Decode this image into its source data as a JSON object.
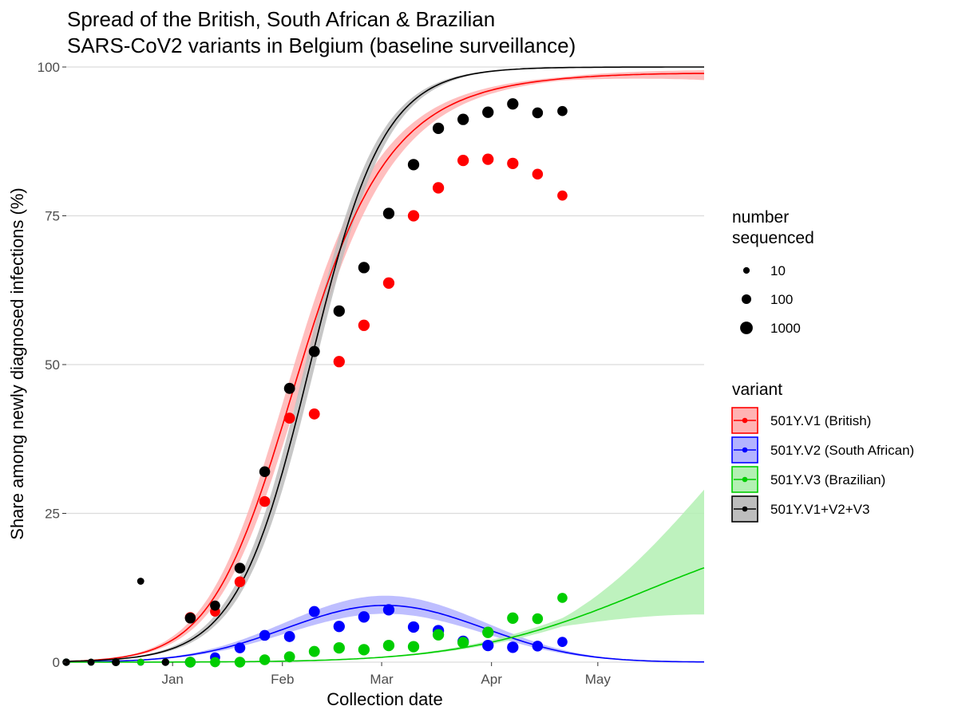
{
  "chart_data": {
    "type": "scatter",
    "title": [
      "Spread of the British, South African & Brazilian",
      "SARS-CoV2 variants in Belgium (baseline surveillance)"
    ],
    "xlabel": "Collection date",
    "ylabel": "Share among newly diagnosed infections (%)",
    "xlim_days": [
      0,
      180
    ],
    "ylim": [
      0,
      100
    ],
    "x_ticks": [
      {
        "label": "Jan",
        "day": 30
      },
      {
        "label": "Feb",
        "day": 61
      },
      {
        "label": "Mar",
        "day": 89
      },
      {
        "label": "Apr",
        "day": 120
      },
      {
        "label": "May",
        "day": 150
      }
    ],
    "y_ticks": [
      0,
      25,
      50,
      75,
      100
    ],
    "grid": true,
    "size_legend": {
      "title": [
        "number",
        "sequenced"
      ],
      "entries": [
        {
          "label": "10",
          "n": 10
        },
        {
          "label": "100",
          "n": 100
        },
        {
          "label": "1000",
          "n": 1000
        }
      ]
    },
    "variant_legend_title": "variant",
    "series": [
      {
        "name": "501Y.V1 (British)",
        "color": "#ff0000",
        "fill": "#ffb3b3",
        "fit": {
          "model": "quadratic_logistic",
          "a": -6.6,
          "b": 0.1217,
          "c": -0.000333,
          "ci_lo": 0.6,
          "ci_hi": 0.6,
          "ci_growth": 9.5
        },
        "points": [
          {
            "x": 0,
            "y": 0,
            "n": 20
          },
          {
            "x": 7,
            "y": 0,
            "n": 15
          },
          {
            "x": 14,
            "y": 0,
            "n": 30
          },
          {
            "x": 21,
            "y": 0,
            "n": 15
          },
          {
            "x": 28,
            "y": 0,
            "n": 20
          },
          {
            "x": 35,
            "y": 7.5,
            "n": 250
          },
          {
            "x": 42,
            "y": 8.5,
            "n": 150
          },
          {
            "x": 49,
            "y": 13.5,
            "n": 250
          },
          {
            "x": 56,
            "y": 27,
            "n": 250
          },
          {
            "x": 63,
            "y": 41,
            "n": 300
          },
          {
            "x": 70,
            "y": 41.7,
            "n": 300
          },
          {
            "x": 77,
            "y": 50.5,
            "n": 400
          },
          {
            "x": 84,
            "y": 56.6,
            "n": 400
          },
          {
            "x": 91,
            "y": 63.7,
            "n": 400
          },
          {
            "x": 98,
            "y": 75,
            "n": 400
          },
          {
            "x": 105,
            "y": 79.7,
            "n": 400
          },
          {
            "x": 112,
            "y": 84.3,
            "n": 400
          },
          {
            "x": 119,
            "y": 84.5,
            "n": 400
          },
          {
            "x": 126,
            "y": 83.8,
            "n": 400
          },
          {
            "x": 133,
            "y": 82,
            "n": 250
          },
          {
            "x": 140,
            "y": 78.4,
            "n": 150
          }
        ]
      },
      {
        "name": "501Y.V2 (South African)",
        "color": "#0000ff",
        "fill": "#b3b3ff",
        "fit": {
          "model": "quadratic_logistic",
          "a": -8.0,
          "b": 0.1278,
          "c": -0.00071,
          "ci_lo": 0.7,
          "ci_hi": 0.7,
          "ci_growth": 0
        },
        "points": [
          {
            "x": 0,
            "y": 0,
            "n": 20
          },
          {
            "x": 7,
            "y": 0,
            "n": 15
          },
          {
            "x": 14,
            "y": 0,
            "n": 30
          },
          {
            "x": 21,
            "y": 0,
            "n": 15
          },
          {
            "x": 28,
            "y": 0,
            "n": 20
          },
          {
            "x": 35,
            "y": 0,
            "n": 250
          },
          {
            "x": 42,
            "y": 0.8,
            "n": 150
          },
          {
            "x": 49,
            "y": 2.4,
            "n": 250
          },
          {
            "x": 56,
            "y": 4.5,
            "n": 250
          },
          {
            "x": 63,
            "y": 4.3,
            "n": 300
          },
          {
            "x": 70,
            "y": 8.5,
            "n": 300
          },
          {
            "x": 77,
            "y": 6,
            "n": 400
          },
          {
            "x": 84,
            "y": 7.6,
            "n": 400
          },
          {
            "x": 91,
            "y": 8.8,
            "n": 400
          },
          {
            "x": 98,
            "y": 5.9,
            "n": 400
          },
          {
            "x": 105,
            "y": 5.3,
            "n": 400
          },
          {
            "x": 112,
            "y": 3.5,
            "n": 400
          },
          {
            "x": 119,
            "y": 2.8,
            "n": 400
          },
          {
            "x": 126,
            "y": 2.5,
            "n": 400
          },
          {
            "x": 133,
            "y": 2.7,
            "n": 250
          },
          {
            "x": 140,
            "y": 3.4,
            "n": 150
          }
        ]
      },
      {
        "name": "501Y.V3 (Brazilian)",
        "color": "#00cd00",
        "fill": "#b3f0b3",
        "fit": {
          "model": "quadratic_logistic",
          "a": -11.0,
          "b": 0.0873,
          "c": -0.000197,
          "ci_lo": 0.45,
          "ci_hi": 0.45,
          "ci_growth": 11
        },
        "points": [
          {
            "x": 0,
            "y": 0,
            "n": 20
          },
          {
            "x": 7,
            "y": 0,
            "n": 15
          },
          {
            "x": 14,
            "y": 0,
            "n": 30
          },
          {
            "x": 21,
            "y": 0,
            "n": 15
          },
          {
            "x": 28,
            "y": 0,
            "n": 20
          },
          {
            "x": 35,
            "y": 0,
            "n": 250
          },
          {
            "x": 42,
            "y": 0,
            "n": 150
          },
          {
            "x": 49,
            "y": 0,
            "n": 250
          },
          {
            "x": 56,
            "y": 0.4,
            "n": 250
          },
          {
            "x": 63,
            "y": 0.9,
            "n": 300
          },
          {
            "x": 70,
            "y": 1.8,
            "n": 300
          },
          {
            "x": 77,
            "y": 2.4,
            "n": 400
          },
          {
            "x": 84,
            "y": 2.1,
            "n": 400
          },
          {
            "x": 91,
            "y": 2.8,
            "n": 400
          },
          {
            "x": 98,
            "y": 2.6,
            "n": 400
          },
          {
            "x": 105,
            "y": 4.6,
            "n": 400
          },
          {
            "x": 112,
            "y": 3.3,
            "n": 400
          },
          {
            "x": 119,
            "y": 5,
            "n": 400
          },
          {
            "x": 126,
            "y": 7.4,
            "n": 400
          },
          {
            "x": 133,
            "y": 7.3,
            "n": 250
          },
          {
            "x": 140,
            "y": 10.8,
            "n": 150
          }
        ]
      },
      {
        "name": "501Y.V1+V2+V3",
        "color": "#000000",
        "fill": "#bdbdbd",
        "fit": {
          "model": "logistic",
          "a": -6.65,
          "b": 0.0966,
          "ci_lo": 0.55,
          "ci_hi": 0.55,
          "ci_growth": 0
        },
        "points": [
          {
            "x": 0,
            "y": 0,
            "n": 20
          },
          {
            "x": 7,
            "y": 0,
            "n": 15
          },
          {
            "x": 14,
            "y": 0,
            "n": 30
          },
          {
            "x": 21,
            "y": 13.6,
            "n": 15
          },
          {
            "x": 28,
            "y": 0,
            "n": 20
          },
          {
            "x": 35,
            "y": 7.4,
            "n": 250
          },
          {
            "x": 42,
            "y": 9.5,
            "n": 150
          },
          {
            "x": 49,
            "y": 15.8,
            "n": 250
          },
          {
            "x": 56,
            "y": 32,
            "n": 250
          },
          {
            "x": 63,
            "y": 46,
            "n": 300
          },
          {
            "x": 70,
            "y": 52.2,
            "n": 300
          },
          {
            "x": 77,
            "y": 59,
            "n": 400
          },
          {
            "x": 84,
            "y": 66.3,
            "n": 400
          },
          {
            "x": 91,
            "y": 75.4,
            "n": 400
          },
          {
            "x": 98,
            "y": 83.6,
            "n": 400
          },
          {
            "x": 105,
            "y": 89.7,
            "n": 400
          },
          {
            "x": 112,
            "y": 91.2,
            "n": 400
          },
          {
            "x": 119,
            "y": 92.4,
            "n": 400
          },
          {
            "x": 126,
            "y": 93.8,
            "n": 400
          },
          {
            "x": 133,
            "y": 92.3,
            "n": 250
          },
          {
            "x": 140,
            "y": 92.6,
            "n": 150
          }
        ]
      }
    ]
  }
}
